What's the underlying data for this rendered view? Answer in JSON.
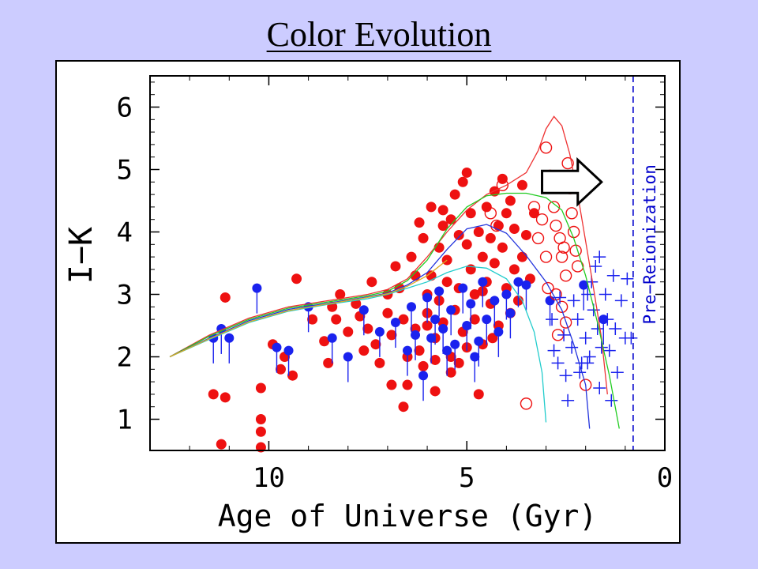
{
  "slide": {
    "title": "Color Evolution"
  },
  "chart_data": {
    "type": "scatter",
    "title": "",
    "xlabel": "Age of Universe (Gyr)",
    "ylabel": "I−K",
    "xlim": [
      13,
      0
    ],
    "ylim": [
      0.5,
      6.5
    ],
    "x_ticks": [
      10,
      5,
      0
    ],
    "y_ticks": [
      1,
      2,
      3,
      4,
      5,
      6
    ],
    "grid": false,
    "annotation": {
      "text": "Pre−Reionization",
      "x": 0.8,
      "line_color": "#0000cc"
    },
    "arrow": {
      "from": [
        3.1,
        4.8
      ],
      "to": [
        1.6,
        4.8
      ]
    },
    "series": [
      {
        "marker": "filled-circle-red",
        "color": "#ee1111",
        "points": [
          [
            11.4,
            1.4
          ],
          [
            11.2,
            0.6
          ],
          [
            11.1,
            1.35
          ],
          [
            11.1,
            2.95
          ],
          [
            10.2,
            1.5
          ],
          [
            10.2,
            1.0
          ],
          [
            10.2,
            0.8
          ],
          [
            10.2,
            0.55
          ],
          [
            9.9,
            2.2
          ],
          [
            9.7,
            1.8
          ],
          [
            9.6,
            2.0
          ],
          [
            9.4,
            1.7
          ],
          [
            9.3,
            3.25
          ],
          [
            8.9,
            2.6
          ],
          [
            8.6,
            2.25
          ],
          [
            8.5,
            1.9
          ],
          [
            8.4,
            2.8
          ],
          [
            8.3,
            2.6
          ],
          [
            8.0,
            2.4
          ],
          [
            7.8,
            2.85
          ],
          [
            7.7,
            2.65
          ],
          [
            7.5,
            2.45
          ],
          [
            7.3,
            2.2
          ],
          [
            7.2,
            1.9
          ],
          [
            7.0,
            2.7
          ],
          [
            7.0,
            3.0
          ],
          [
            6.9,
            2.35
          ],
          [
            6.8,
            3.45
          ],
          [
            6.7,
            3.1
          ],
          [
            6.6,
            2.6
          ],
          [
            6.5,
            2.0
          ],
          [
            6.5,
            1.55
          ],
          [
            6.4,
            3.6
          ],
          [
            6.3,
            3.3
          ],
          [
            6.3,
            2.45
          ],
          [
            6.2,
            2.1
          ],
          [
            6.1,
            3.9
          ],
          [
            6.1,
            1.85
          ],
          [
            6.0,
            3.0
          ],
          [
            6.0,
            2.7
          ],
          [
            5.9,
            4.4
          ],
          [
            5.9,
            3.3
          ],
          [
            5.8,
            2.3
          ],
          [
            5.8,
            1.95
          ],
          [
            5.7,
            3.75
          ],
          [
            5.7,
            2.9
          ],
          [
            5.6,
            2.55
          ],
          [
            5.6,
            4.1
          ],
          [
            5.5,
            3.2
          ],
          [
            5.5,
            3.55
          ],
          [
            5.4,
            4.2
          ],
          [
            5.4,
            2.0
          ],
          [
            5.3,
            4.6
          ],
          [
            5.3,
            2.75
          ],
          [
            5.2,
            3.95
          ],
          [
            5.2,
            3.1
          ],
          [
            5.1,
            4.8
          ],
          [
            5.1,
            2.4
          ],
          [
            5.0,
            3.8
          ],
          [
            5.0,
            2.15
          ],
          [
            4.9,
            4.3
          ],
          [
            4.9,
            3.4
          ],
          [
            4.8,
            2.6
          ],
          [
            4.8,
            3.0
          ],
          [
            4.7,
            4.0
          ],
          [
            4.6,
            3.6
          ],
          [
            4.6,
            2.2
          ],
          [
            4.5,
            4.4
          ],
          [
            4.5,
            3.2
          ],
          [
            4.4,
            3.9
          ],
          [
            4.4,
            2.85
          ],
          [
            4.3,
            4.65
          ],
          [
            4.3,
            3.5
          ],
          [
            4.2,
            4.1
          ],
          [
            4.2,
            2.5
          ],
          [
            4.1,
            3.75
          ],
          [
            4.0,
            4.3
          ],
          [
            4.0,
            3.1
          ],
          [
            3.9,
            4.5
          ],
          [
            3.9,
            2.7
          ],
          [
            3.8,
            3.4
          ],
          [
            3.8,
            4.05
          ],
          [
            3.7,
            2.9
          ],
          [
            3.6,
            3.6
          ],
          [
            3.6,
            4.75
          ],
          [
            3.5,
            3.95
          ],
          [
            3.4,
            3.25
          ],
          [
            3.3,
            4.3
          ],
          [
            6.6,
            1.2
          ],
          [
            5.8,
            1.45
          ],
          [
            5.4,
            1.75
          ],
          [
            4.7,
            1.4
          ],
          [
            6.9,
            1.55
          ],
          [
            7.6,
            2.1
          ],
          [
            8.2,
            3.0
          ],
          [
            5.0,
            4.95
          ],
          [
            4.1,
            4.85
          ],
          [
            5.6,
            4.35
          ],
          [
            6.2,
            4.15
          ],
          [
            4.6,
            3.05
          ],
          [
            5.2,
            1.9
          ],
          [
            6.0,
            2.5
          ],
          [
            4.35,
            2.3
          ],
          [
            7.4,
            3.2
          ]
        ]
      },
      {
        "marker": "filled-circle-blue",
        "color": "#1a22ee",
        "points": [
          [
            11.4,
            2.3
          ],
          [
            11.2,
            2.45
          ],
          [
            11.0,
            2.3
          ],
          [
            10.3,
            3.1
          ],
          [
            9.8,
            2.15
          ],
          [
            9.5,
            2.1
          ],
          [
            9.0,
            2.8
          ],
          [
            8.4,
            2.3
          ],
          [
            8.0,
            2.0
          ],
          [
            7.6,
            2.75
          ],
          [
            7.2,
            2.4
          ],
          [
            6.8,
            2.55
          ],
          [
            6.5,
            2.1
          ],
          [
            6.3,
            2.35
          ],
          [
            6.1,
            1.7
          ],
          [
            6.0,
            2.95
          ],
          [
            5.8,
            2.6
          ],
          [
            5.7,
            3.05
          ],
          [
            5.6,
            2.45
          ],
          [
            5.4,
            2.75
          ],
          [
            5.3,
            2.2
          ],
          [
            5.1,
            3.1
          ],
          [
            5.0,
            2.5
          ],
          [
            4.9,
            2.85
          ],
          [
            4.7,
            2.25
          ],
          [
            4.6,
            3.2
          ],
          [
            4.5,
            2.6
          ],
          [
            4.3,
            2.9
          ],
          [
            4.2,
            2.4
          ],
          [
            4.0,
            3.0
          ],
          [
            3.9,
            2.7
          ],
          [
            3.7,
            3.2
          ],
          [
            3.5,
            3.15
          ],
          [
            2.9,
            2.9
          ],
          [
            2.05,
            3.15
          ],
          [
            1.55,
            2.6
          ],
          [
            5.9,
            2.3
          ],
          [
            4.8,
            2.0
          ],
          [
            6.4,
            2.8
          ],
          [
            5.5,
            2.1
          ]
        ]
      },
      {
        "marker": "open-circle-red",
        "color": "#ee1111",
        "points": [
          [
            3.5,
            1.25
          ],
          [
            4.1,
            4.75
          ],
          [
            4.4,
            4.3
          ],
          [
            3.0,
            5.35
          ],
          [
            2.9,
            4.9
          ],
          [
            2.8,
            4.4
          ],
          [
            2.75,
            4.1
          ],
          [
            2.65,
            3.9
          ],
          [
            2.6,
            3.6
          ],
          [
            2.5,
            3.3
          ],
          [
            2.45,
            5.1
          ],
          [
            2.4,
            4.7
          ],
          [
            2.35,
            4.3
          ],
          [
            2.3,
            4.0
          ],
          [
            2.25,
            3.7
          ],
          [
            2.2,
            3.45
          ],
          [
            2.75,
            3.0
          ],
          [
            2.6,
            2.8
          ],
          [
            2.5,
            2.55
          ],
          [
            3.0,
            3.6
          ],
          [
            3.1,
            4.2
          ],
          [
            3.2,
            3.9
          ],
          [
            2.95,
            3.1
          ],
          [
            2.55,
            3.75
          ],
          [
            2.7,
            2.35
          ],
          [
            2.0,
            1.55
          ],
          [
            4.25,
            4.1
          ],
          [
            3.3,
            4.4
          ]
        ]
      },
      {
        "marker": "plus-blue",
        "color": "#1a22ee",
        "points": [
          [
            2.85,
            2.6
          ],
          [
            2.8,
            2.1
          ],
          [
            2.7,
            1.9
          ],
          [
            2.55,
            2.35
          ],
          [
            2.5,
            1.7
          ],
          [
            2.45,
            1.3
          ],
          [
            2.35,
            2.15
          ],
          [
            2.3,
            2.9
          ],
          [
            2.2,
            2.6
          ],
          [
            2.1,
            1.9
          ],
          [
            2.0,
            2.3
          ],
          [
            1.95,
            3.0
          ],
          [
            1.9,
            2.0
          ],
          [
            1.85,
            3.2
          ],
          [
            1.8,
            2.75
          ],
          [
            1.75,
            3.45
          ],
          [
            1.7,
            2.45
          ],
          [
            1.65,
            1.5
          ],
          [
            1.6,
            2.15
          ],
          [
            1.5,
            3.0
          ],
          [
            1.45,
            2.6
          ],
          [
            1.4,
            2.1
          ],
          [
            1.3,
            3.3
          ],
          [
            1.2,
            1.75
          ],
          [
            1.1,
            2.9
          ],
          [
            1.0,
            2.3
          ],
          [
            0.85,
            2.3
          ],
          [
            0.95,
            3.25
          ],
          [
            1.35,
            1.3
          ],
          [
            2.65,
            2.95
          ],
          [
            1.65,
            3.6
          ],
          [
            2.15,
            1.75
          ],
          [
            1.95,
            1.9
          ],
          [
            1.25,
            2.45
          ]
        ]
      }
    ],
    "curves": [
      {
        "color": "#ee3333",
        "points": [
          [
            12.5,
            2.0
          ],
          [
            11.5,
            2.35
          ],
          [
            10.5,
            2.62
          ],
          [
            9.5,
            2.8
          ],
          [
            8.5,
            2.9
          ],
          [
            7.5,
            3.0
          ],
          [
            7.0,
            3.08
          ],
          [
            6.5,
            3.25
          ],
          [
            6.0,
            3.6
          ],
          [
            5.5,
            4.0
          ],
          [
            5.0,
            4.35
          ],
          [
            4.5,
            4.6
          ],
          [
            4.0,
            4.75
          ],
          [
            3.5,
            4.95
          ],
          [
            3.2,
            5.3
          ],
          [
            3.0,
            5.65
          ],
          [
            2.8,
            5.85
          ],
          [
            2.6,
            5.7
          ],
          [
            2.4,
            5.25
          ],
          [
            2.2,
            4.6
          ],
          [
            2.0,
            3.85
          ],
          [
            1.8,
            3.1
          ],
          [
            1.6,
            2.3
          ],
          [
            1.45,
            1.4
          ]
        ]
      },
      {
        "color": "#22cc22",
        "points": [
          [
            12.5,
            2.0
          ],
          [
            11.5,
            2.33
          ],
          [
            10.5,
            2.6
          ],
          [
            9.5,
            2.78
          ],
          [
            8.5,
            2.88
          ],
          [
            7.5,
            2.98
          ],
          [
            7.0,
            3.05
          ],
          [
            6.5,
            3.22
          ],
          [
            6.0,
            3.55
          ],
          [
            5.5,
            4.05
          ],
          [
            5.0,
            4.4
          ],
          [
            4.5,
            4.58
          ],
          [
            4.0,
            4.62
          ],
          [
            3.5,
            4.62
          ],
          [
            3.0,
            4.55
          ],
          [
            2.6,
            4.35
          ],
          [
            2.3,
            3.9
          ],
          [
            2.0,
            3.3
          ],
          [
            1.7,
            2.55
          ],
          [
            1.4,
            1.7
          ],
          [
            1.15,
            0.85
          ]
        ]
      },
      {
        "color": "#2233dd",
        "points": [
          [
            12.5,
            2.0
          ],
          [
            11.5,
            2.3
          ],
          [
            10.5,
            2.58
          ],
          [
            9.5,
            2.76
          ],
          [
            8.5,
            2.86
          ],
          [
            7.5,
            2.96
          ],
          [
            7.0,
            3.02
          ],
          [
            6.5,
            3.15
          ],
          [
            6.0,
            3.35
          ],
          [
            5.5,
            3.72
          ],
          [
            5.0,
            4.05
          ],
          [
            4.5,
            4.12
          ],
          [
            4.0,
            3.98
          ],
          [
            3.5,
            3.62
          ],
          [
            3.0,
            3.2
          ],
          [
            2.6,
            2.75
          ],
          [
            2.3,
            2.2
          ],
          [
            2.0,
            1.55
          ],
          [
            1.9,
            0.85
          ]
        ]
      },
      {
        "color": "#22cccc",
        "points": [
          [
            12.5,
            2.0
          ],
          [
            11.5,
            2.28
          ],
          [
            10.5,
            2.55
          ],
          [
            9.5,
            2.73
          ],
          [
            8.5,
            2.84
          ],
          [
            7.5,
            2.93
          ],
          [
            7.0,
            3.0
          ],
          [
            6.5,
            3.1
          ],
          [
            6.0,
            3.2
          ],
          [
            5.5,
            3.35
          ],
          [
            5.0,
            3.45
          ],
          [
            4.5,
            3.42
          ],
          [
            4.0,
            3.25
          ],
          [
            3.6,
            2.9
          ],
          [
            3.3,
            2.4
          ],
          [
            3.1,
            1.75
          ],
          [
            3.0,
            0.95
          ]
        ]
      },
      {
        "color": "#ddaa22",
        "points": [
          [
            12.5,
            2.0
          ],
          [
            11.5,
            2.29
          ],
          [
            10.5,
            2.56
          ],
          [
            9.5,
            2.74
          ],
          [
            8.5,
            2.85
          ],
          [
            7.5,
            2.95
          ],
          [
            7.0,
            3.01
          ],
          [
            6.5,
            3.13
          ],
          [
            6.0,
            3.3
          ],
          [
            5.5,
            3.55
          ]
        ]
      }
    ]
  }
}
